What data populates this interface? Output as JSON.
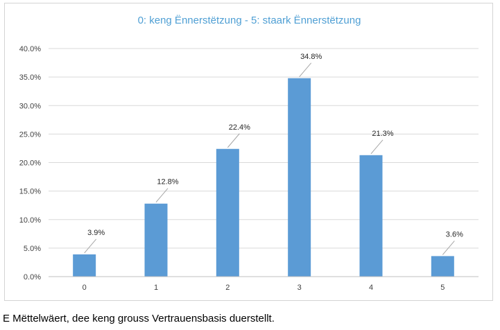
{
  "chart_data": {
    "type": "bar",
    "title": "0: keng Ënnerstëtzung - 5: staark Ënnerstëtzung",
    "categories": [
      "0",
      "1",
      "2",
      "3",
      "4",
      "5"
    ],
    "values": [
      3.9,
      12.8,
      22.4,
      34.8,
      21.3,
      3.6
    ],
    "data_labels": [
      "3.9%",
      "12.8%",
      "22.4%",
      "34.8%",
      "21.3%",
      "3.6%"
    ],
    "y_ticks": [
      0,
      5,
      10,
      15,
      20,
      25,
      30,
      35,
      40
    ],
    "y_tick_labels": [
      "0.0%",
      "5.0%",
      "10.0%",
      "15.0%",
      "20.0%",
      "25.0%",
      "30.0%",
      "35.0%",
      "40.0%"
    ],
    "ylim": [
      0,
      40
    ],
    "xlabel": "",
    "ylabel": "",
    "grid": true,
    "bar_color": "#5b9bd5"
  },
  "caption": "E Mëttelwäert, dee keng grouss Vertrauensbasis duerstellt."
}
